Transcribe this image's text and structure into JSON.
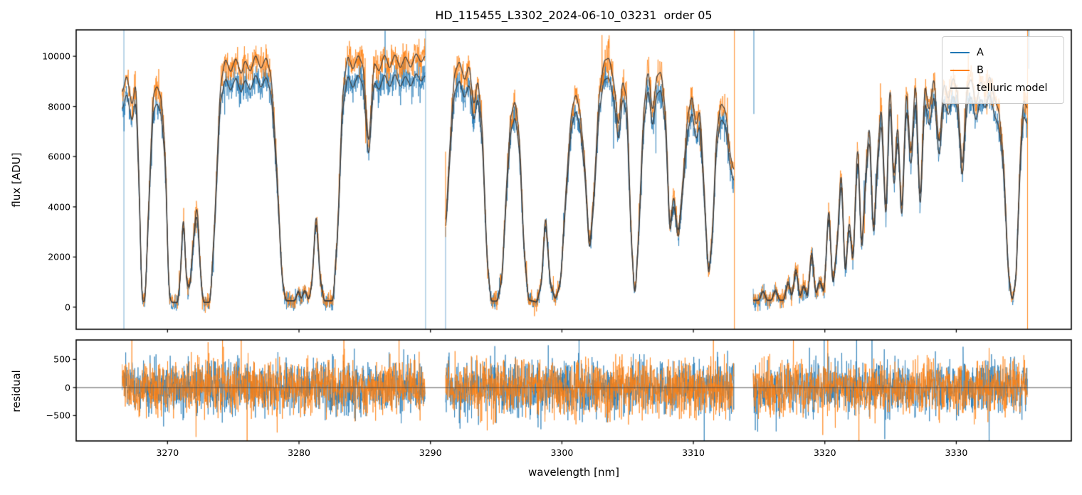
{
  "figure": {
    "title": "HD_115455_L3302_2024-06-10_03231  order 05",
    "xlabel": "wavelength [nm]",
    "ylabel_flux": "flux [ADU]",
    "ylabel_residual": "residual"
  },
  "legend": {
    "entries": [
      {
        "label": "A",
        "color": "#1f77b4"
      },
      {
        "label": "B",
        "color": "#ff7f0e"
      },
      {
        "label": "telluric model",
        "color": "#4d4d4d"
      }
    ]
  },
  "chart_data": {
    "type": "line",
    "title": "HD_115455_L3302_2024-06-10_03231  order 05",
    "xlabel": "wavelength [nm]",
    "ylabel_top": "flux [ADU]",
    "ylabel_bottom": "residual",
    "series_names": [
      "A",
      "B",
      "telluric model"
    ],
    "xlim": [
      3263.05,
      3338.75
    ],
    "ylim_flux": [
      -880,
      11050
    ],
    "ylim_residual": [
      -950,
      848
    ],
    "xticks": [
      3270,
      3280,
      3290,
      3300,
      3310,
      3320,
      3330
    ],
    "yticks_flux": [
      0,
      2000,
      4000,
      6000,
      8000,
      10000
    ],
    "yticks_residual": [
      -500,
      0,
      500
    ],
    "gaps_nm": [
      [
        3289.6,
        3291.15
      ],
      [
        3313.1,
        3314.55
      ]
    ],
    "b_over_a_scale": 1.085,
    "continuum_A": [
      [
        3266.5,
        8900
      ],
      [
        3269,
        9050
      ],
      [
        3272,
        9150
      ],
      [
        3274.5,
        9550
      ],
      [
        3278,
        9600
      ],
      [
        3283,
        9650
      ],
      [
        3289.6,
        9750
      ],
      [
        3291.1,
        9500
      ],
      [
        3294,
        9350
      ],
      [
        3297,
        9300
      ],
      [
        3300,
        9450
      ],
      [
        3304,
        9550
      ],
      [
        3308,
        9400
      ],
      [
        3311,
        9100
      ],
      [
        3313.1,
        9000
      ],
      [
        3314.5,
        8700
      ],
      [
        3318,
        8700
      ],
      [
        3322,
        8800
      ],
      [
        3325,
        8950
      ],
      [
        3328,
        8900
      ],
      [
        3331,
        8950
      ],
      [
        3335.4,
        9050
      ]
    ],
    "segments": [
      {
        "range": [
          3266.55,
          3289.6
        ],
        "transmission": [
          [
            3266.55,
            0.88
          ],
          [
            3266.9,
            0.96
          ],
          [
            3267.3,
            0.82
          ],
          [
            3267.6,
            0.93
          ],
          [
            3267.85,
            0.5
          ],
          [
            3268.05,
            0.025
          ],
          [
            3268.3,
            0.025
          ],
          [
            3268.55,
            0.4
          ],
          [
            3268.9,
            0.86
          ],
          [
            3269.2,
            0.9
          ],
          [
            3269.55,
            0.84
          ],
          [
            3269.85,
            0.6
          ],
          [
            3270.1,
            0.06
          ],
          [
            3270.3,
            0.02
          ],
          [
            3270.8,
            0.02
          ],
          [
            3271.0,
            0.15
          ],
          [
            3271.2,
            0.4
          ],
          [
            3271.45,
            0.1
          ],
          [
            3271.7,
            0.08
          ],
          [
            3272.0,
            0.3
          ],
          [
            3272.25,
            0.42
          ],
          [
            3272.5,
            0.15
          ],
          [
            3272.7,
            0.02
          ],
          [
            3273.25,
            0.02
          ],
          [
            3273.6,
            0.35
          ],
          [
            3274.0,
            0.85
          ],
          [
            3274.4,
            0.96
          ],
          [
            3274.8,
            0.9
          ],
          [
            3275.2,
            0.96
          ],
          [
            3275.6,
            0.89
          ],
          [
            3275.9,
            0.95
          ],
          [
            3276.3,
            0.9
          ],
          [
            3276.7,
            0.97
          ],
          [
            3277.1,
            0.91
          ],
          [
            3277.5,
            0.96
          ],
          [
            3277.9,
            0.88
          ],
          [
            3278.3,
            0.55
          ],
          [
            3278.7,
            0.12
          ],
          [
            3279.0,
            0.025
          ],
          [
            3279.7,
            0.025
          ],
          [
            3279.95,
            0.07
          ],
          [
            3280.15,
            0.03
          ],
          [
            3280.45,
            0.07
          ],
          [
            3280.75,
            0.025
          ],
          [
            3281.0,
            0.1
          ],
          [
            3281.3,
            0.38
          ],
          [
            3281.6,
            0.12
          ],
          [
            3281.9,
            0.025
          ],
          [
            3282.6,
            0.025
          ],
          [
            3282.95,
            0.3
          ],
          [
            3283.3,
            0.8
          ],
          [
            3283.7,
            0.96
          ],
          [
            3284.1,
            0.9
          ],
          [
            3284.5,
            0.96
          ],
          [
            3284.9,
            0.91
          ],
          [
            3285.3,
            0.6
          ],
          [
            3285.7,
            0.93
          ],
          [
            3286.1,
            0.89
          ],
          [
            3286.5,
            0.96
          ],
          [
            3286.9,
            0.9
          ],
          [
            3287.3,
            0.96
          ],
          [
            3287.7,
            0.9
          ],
          [
            3288.1,
            0.95
          ],
          [
            3288.5,
            0.9
          ],
          [
            3288.9,
            0.96
          ],
          [
            3289.3,
            0.92
          ],
          [
            3289.6,
            0.95
          ]
        ]
      },
      {
        "range": [
          3291.15,
          3313.1
        ],
        "transmission": [
          [
            3291.15,
            0.3
          ],
          [
            3291.45,
            0.6
          ],
          [
            3291.8,
            0.9
          ],
          [
            3292.2,
            0.96
          ],
          [
            3292.6,
            0.88
          ],
          [
            3292.95,
            0.95
          ],
          [
            3293.3,
            0.78
          ],
          [
            3293.6,
            0.9
          ],
          [
            3293.95,
            0.7
          ],
          [
            3294.3,
            0.2
          ],
          [
            3294.6,
            0.025
          ],
          [
            3295.1,
            0.025
          ],
          [
            3295.45,
            0.12
          ],
          [
            3295.8,
            0.5
          ],
          [
            3296.1,
            0.75
          ],
          [
            3296.45,
            0.82
          ],
          [
            3296.8,
            0.65
          ],
          [
            3297.1,
            0.25
          ],
          [
            3297.45,
            0.03
          ],
          [
            3298.1,
            0.02
          ],
          [
            3298.45,
            0.1
          ],
          [
            3298.75,
            0.38
          ],
          [
            3299.1,
            0.1
          ],
          [
            3299.5,
            0.03
          ],
          [
            3299.9,
            0.1
          ],
          [
            3300.3,
            0.45
          ],
          [
            3300.7,
            0.75
          ],
          [
            3301.05,
            0.83
          ],
          [
            3301.4,
            0.75
          ],
          [
            3301.75,
            0.55
          ],
          [
            3302.1,
            0.22
          ],
          [
            3302.45,
            0.45
          ],
          [
            3302.8,
            0.8
          ],
          [
            3303.2,
            0.95
          ],
          [
            3303.6,
            0.96
          ],
          [
            3304.0,
            0.85
          ],
          [
            3304.3,
            0.68
          ],
          [
            3304.6,
            0.88
          ],
          [
            3304.95,
            0.8
          ],
          [
            3305.25,
            0.3
          ],
          [
            3305.55,
            0.025
          ],
          [
            3305.85,
            0.3
          ],
          [
            3306.2,
            0.75
          ],
          [
            3306.55,
            0.93
          ],
          [
            3306.9,
            0.75
          ],
          [
            3307.2,
            0.9
          ],
          [
            3307.55,
            0.92
          ],
          [
            3307.9,
            0.75
          ],
          [
            3308.2,
            0.3
          ],
          [
            3308.5,
            0.45
          ],
          [
            3308.85,
            0.28
          ],
          [
            3309.2,
            0.5
          ],
          [
            3309.55,
            0.75
          ],
          [
            3309.9,
            0.85
          ],
          [
            3310.2,
            0.72
          ],
          [
            3310.5,
            0.8
          ],
          [
            3310.85,
            0.45
          ],
          [
            3311.15,
            0.12
          ],
          [
            3311.45,
            0.3
          ],
          [
            3311.75,
            0.7
          ],
          [
            3312.1,
            0.83
          ],
          [
            3312.45,
            0.8
          ],
          [
            3312.8,
            0.62
          ],
          [
            3313.1,
            0.55
          ]
        ]
      },
      {
        "range": [
          3314.55,
          3335.42
        ],
        "transmission": [
          [
            3314.55,
            0.03
          ],
          [
            3315.0,
            0.03
          ],
          [
            3315.3,
            0.075
          ],
          [
            3315.6,
            0.03
          ],
          [
            3315.95,
            0.03
          ],
          [
            3316.25,
            0.08
          ],
          [
            3316.55,
            0.03
          ],
          [
            3316.9,
            0.03
          ],
          [
            3317.2,
            0.12
          ],
          [
            3317.5,
            0.04
          ],
          [
            3317.8,
            0.18
          ],
          [
            3318.1,
            0.04
          ],
          [
            3318.4,
            0.1
          ],
          [
            3318.7,
            0.04
          ],
          [
            3319.0,
            0.26
          ],
          [
            3319.3,
            0.05
          ],
          [
            3319.6,
            0.12
          ],
          [
            3319.95,
            0.06
          ],
          [
            3320.3,
            0.45
          ],
          [
            3320.6,
            0.08
          ],
          [
            3320.95,
            0.28
          ],
          [
            3321.25,
            0.6
          ],
          [
            3321.55,
            0.12
          ],
          [
            3321.85,
            0.38
          ],
          [
            3322.15,
            0.18
          ],
          [
            3322.5,
            0.72
          ],
          [
            3322.8,
            0.22
          ],
          [
            3323.1,
            0.55
          ],
          [
            3323.4,
            0.78
          ],
          [
            3323.7,
            0.28
          ],
          [
            3324.0,
            0.62
          ],
          [
            3324.3,
            0.85
          ],
          [
            3324.65,
            0.35
          ],
          [
            3324.95,
            0.96
          ],
          [
            3325.25,
            0.5
          ],
          [
            3325.55,
            0.78
          ],
          [
            3325.85,
            0.35
          ],
          [
            3326.2,
            0.92
          ],
          [
            3326.55,
            0.6
          ],
          [
            3326.9,
            0.96
          ],
          [
            3327.25,
            0.4
          ],
          [
            3327.6,
            0.93
          ],
          [
            3327.95,
            0.8
          ],
          [
            3328.3,
            0.96
          ],
          [
            3328.7,
            0.65
          ],
          [
            3329.05,
            0.93
          ],
          [
            3329.4,
            0.85
          ],
          [
            3329.75,
            0.95
          ],
          [
            3330.1,
            0.88
          ],
          [
            3330.45,
            0.55
          ],
          [
            3330.8,
            0.9
          ],
          [
            3331.15,
            0.94
          ],
          [
            3331.5,
            0.82
          ],
          [
            3331.85,
            0.93
          ],
          [
            3332.2,
            0.88
          ],
          [
            3332.55,
            0.95
          ],
          [
            3332.9,
            0.85
          ],
          [
            3333.25,
            0.8
          ],
          [
            3333.6,
            0.6
          ],
          [
            3333.95,
            0.15
          ],
          [
            3334.25,
            0.02
          ],
          [
            3334.55,
            0.12
          ],
          [
            3334.85,
            0.6
          ],
          [
            3335.1,
            0.85
          ],
          [
            3335.42,
            0.8
          ]
        ]
      }
    ],
    "artifact_vlines": [
      {
        "x": 3266.68,
        "series": "A",
        "y0": -880,
        "y1": 11050,
        "alpha": 0.55
      },
      {
        "x": 3289.63,
        "series": "A",
        "y0": -880,
        "y1": 11050,
        "alpha": 0.5
      },
      {
        "x": 3291.15,
        "series": "B",
        "y0": 2800,
        "y1": 6200,
        "alpha": 0.9
      },
      {
        "x": 3291.15,
        "series": "A",
        "y0": -880,
        "y1": 3200,
        "alpha": 0.55
      },
      {
        "x": 3313.12,
        "series": "B",
        "y0": -880,
        "y1": 11050,
        "alpha": 0.85
      },
      {
        "x": 3314.6,
        "series": "A",
        "y0": 7700,
        "y1": 11050,
        "alpha": 0.8
      },
      {
        "x": 3335.42,
        "series": "B",
        "y0": -880,
        "y1": 11050,
        "alpha": 0.9
      },
      {
        "x": 3335.52,
        "series": "A",
        "y0": 9500,
        "y1": 11050,
        "alpha": 0.7
      }
    ],
    "noise": {
      "seed": 1337,
      "flux_sigma_base": 165,
      "flux_sigma_prop": 0.016,
      "residual_sigma": 235,
      "spike_prob": 0.02,
      "spike_mult": 2.6
    },
    "zero_line_color": "#404040",
    "model_color": "#3d3d3d",
    "spine_color": "#000000"
  }
}
